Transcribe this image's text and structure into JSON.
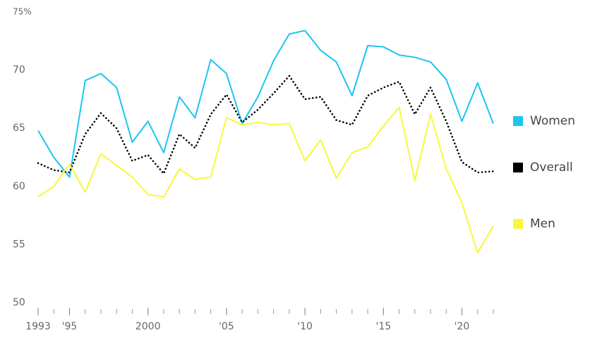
{
  "chart_data": {
    "type": "line",
    "x": [
      1993,
      1994,
      1995,
      1996,
      1997,
      1998,
      1999,
      2000,
      2001,
      2002,
      2003,
      2004,
      2005,
      2006,
      2007,
      2008,
      2009,
      2010,
      2011,
      2012,
      2013,
      2014,
      2015,
      2016,
      2017,
      2018,
      2019,
      2020,
      2021,
      2022
    ],
    "series": [
      {
        "name": "Women",
        "color": "#1cc4f2",
        "style": "solid",
        "values": [
          64.8,
          62.5,
          60.8,
          69.1,
          69.7,
          68.5,
          63.8,
          65.6,
          62.9,
          67.7,
          65.9,
          70.9,
          69.7,
          65.4,
          67.7,
          70.8,
          73.1,
          73.4,
          71.7,
          70.7,
          67.8,
          72.1,
          72.0,
          71.3,
          71.1,
          70.7,
          69.2,
          65.6,
          68.9,
          65.4
        ]
      },
      {
        "name": "Overall",
        "color": "#000000",
        "style": "dotted",
        "values": [
          62.0,
          61.4,
          61.2,
          64.5,
          66.3,
          65.0,
          62.2,
          62.7,
          61.1,
          64.5,
          63.3,
          66.2,
          67.9,
          65.5,
          66.6,
          68.0,
          69.5,
          67.5,
          67.7,
          65.7,
          65.3,
          67.8,
          68.5,
          69.0,
          66.2,
          68.5,
          65.6,
          62.1,
          61.2,
          61.3
        ]
      },
      {
        "name": "Men",
        "color": "#f7f73c",
        "style": "solid",
        "values": [
          59.1,
          60.0,
          61.9,
          59.5,
          62.8,
          61.8,
          60.8,
          59.3,
          59.1,
          61.5,
          60.6,
          60.8,
          65.9,
          65.3,
          65.5,
          65.3,
          65.4,
          62.2,
          64.0,
          60.7,
          62.9,
          63.4,
          65.2,
          66.8,
          60.5,
          66.2,
          61.5,
          58.6,
          54.3,
          56.6
        ]
      }
    ],
    "xlim": [
      1993,
      2022
    ],
    "xticks": [
      1993,
      {
        "value": 1995,
        "label": "'95"
      },
      2000,
      {
        "value": 2005,
        "label": "'05"
      },
      {
        "value": 2010,
        "label": "'10"
      },
      {
        "value": 2015,
        "label": "'15"
      },
      {
        "value": 2020,
        "label": "'20"
      }
    ],
    "ylim": [
      50,
      75
    ],
    "yticks": [
      50,
      55,
      60,
      65,
      70,
      {
        "value": 75,
        "label": "75%"
      }
    ],
    "grid": false
  }
}
